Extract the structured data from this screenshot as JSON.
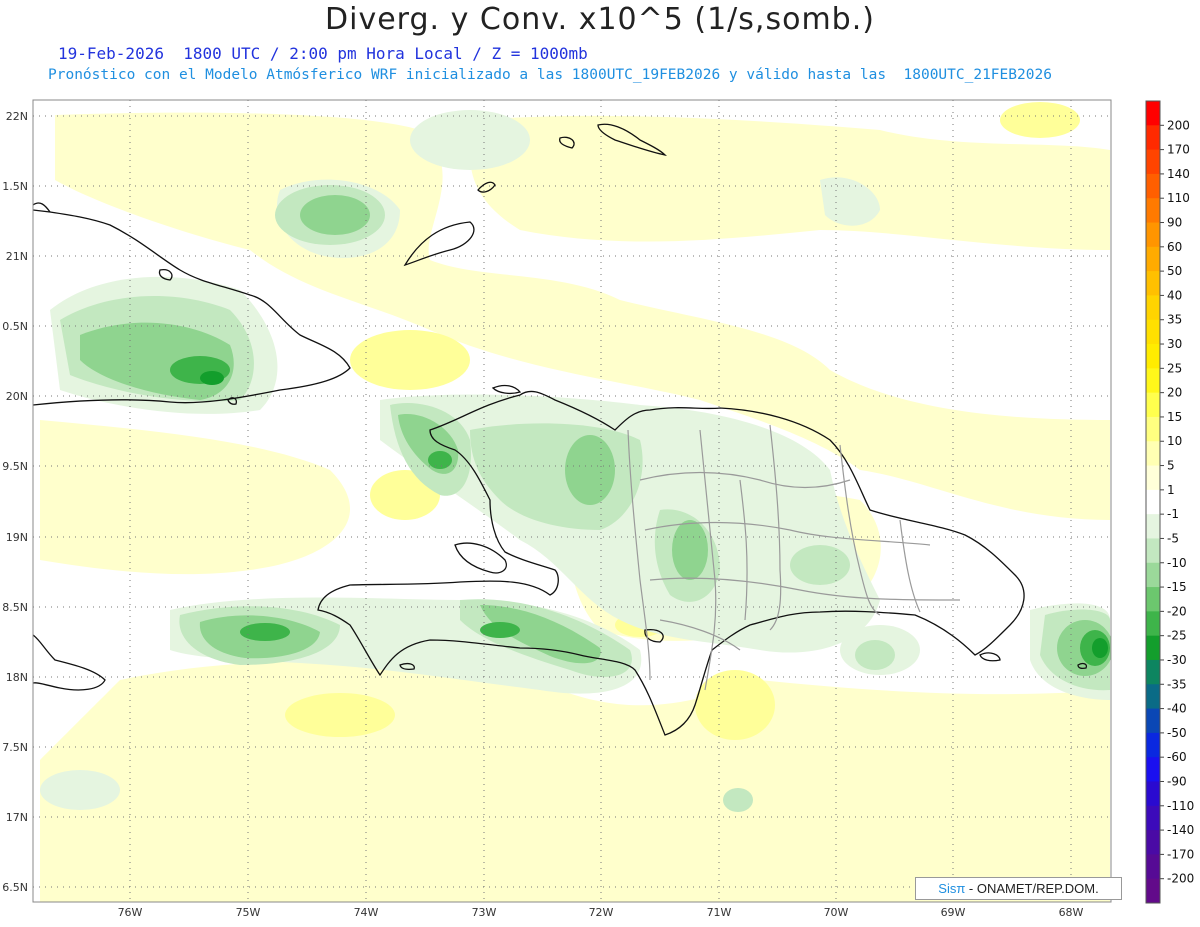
{
  "header": {
    "title": "Diverg. y Conv. x10^5 (1/s,somb.)",
    "subtitle_line1": "19-Feb-2026  1800 UTC / 2:00 pm Hora Local / Z = 1000mb",
    "subtitle_line2": "Pronóstico con el Modelo Atmósferico WRF inicializado a las 1800UTC_19FEB2026 y válido hasta las  1800UTC_21FEB2026"
  },
  "map": {
    "lat_labels": [
      "22N",
      "1.5N",
      "21N",
      "0.5N",
      "20N",
      "9.5N",
      "19N",
      "8.5N",
      "18N",
      "7.5N",
      "17N",
      "6.5N"
    ],
    "lon_labels": [
      "76W",
      "75W",
      "74W",
      "73W",
      "72W",
      "71W",
      "70W",
      "69W",
      "68W"
    ]
  },
  "colorbar": {
    "levels": [
      {
        "label": "200",
        "color": "#ff0000"
      },
      {
        "label": "170",
        "color": "#ff2a00"
      },
      {
        "label": "140",
        "color": "#ff4400"
      },
      {
        "label": "110",
        "color": "#ff5f00"
      },
      {
        "label": "90",
        "color": "#ff7a00"
      },
      {
        "label": "60",
        "color": "#ff9500"
      },
      {
        "label": "50",
        "color": "#ffab00"
      },
      {
        "label": "40",
        "color": "#ffc000"
      },
      {
        "label": "35",
        "color": "#ffd400"
      },
      {
        "label": "30",
        "color": "#ffe000"
      },
      {
        "label": "25",
        "color": "#ffec00"
      },
      {
        "label": "20",
        "color": "#fff71a"
      },
      {
        "label": "15",
        "color": "#ffff4d"
      },
      {
        "label": "10",
        "color": "#ffff80"
      },
      {
        "label": "5",
        "color": "#ffffb3"
      },
      {
        "label": "1",
        "color": "#ffffd9"
      },
      {
        "label": "-1",
        "color": "#ffffff"
      },
      {
        "label": "-5",
        "color": "#e5f5e0"
      },
      {
        "label": "-10",
        "color": "#c3e8c0"
      },
      {
        "label": "-15",
        "color": "#9bd99a"
      },
      {
        "label": "-20",
        "color": "#6cc76e"
      },
      {
        "label": "-25",
        "color": "#3eb44a"
      },
      {
        "label": "-30",
        "color": "#139e2c"
      },
      {
        "label": "-35",
        "color": "#0d8560"
      },
      {
        "label": "-40",
        "color": "#0a6b86"
      },
      {
        "label": "-50",
        "color": "#0a47b5"
      },
      {
        "label": "-60",
        "color": "#0a28e0"
      },
      {
        "label": "-90",
        "color": "#1a10f0"
      },
      {
        "label": "-110",
        "color": "#2a0ad0"
      },
      {
        "label": "-140",
        "color": "#3c0aba"
      },
      {
        "label": "-170",
        "color": "#4a0aa5"
      },
      {
        "label": "-200",
        "color": "#560a95"
      },
      {
        "label": "",
        "color": "#620a8a"
      }
    ]
  },
  "credit": {
    "brand": "Sisπ",
    "text": " - ONAMET/REP.DOM."
  }
}
